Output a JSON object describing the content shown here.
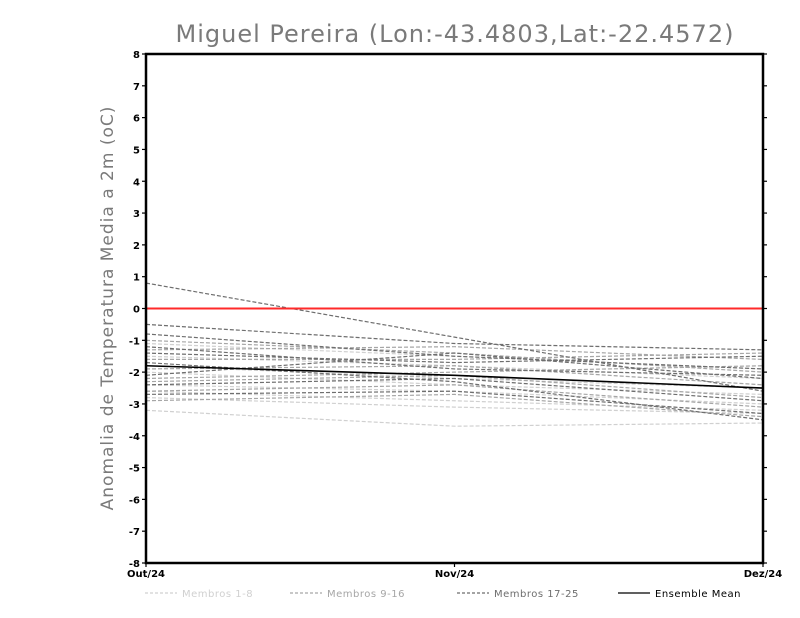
{
  "chart_data": {
    "type": "line",
    "title": "Miguel Pereira (Lon:-43.4803,Lat:-22.4572)",
    "ylabel": "Anomalia de Temperatura Media a 2m (oC)",
    "xlabel": "",
    "categories": [
      "Out/24",
      "Nov/24",
      "Dez/24"
    ],
    "ylim": [
      -8,
      8
    ],
    "yticks": [
      8,
      7,
      6,
      5,
      4,
      3,
      2,
      1,
      0,
      -1,
      -2,
      -3,
      -4,
      -5,
      -6,
      -7,
      -8
    ],
    "reference_line": {
      "y": 0,
      "color": "#ff2a2a"
    },
    "groups": [
      {
        "name": "Membros 1-8",
        "color": "#d0d0d0",
        "dash": "dashed",
        "series": [
          [
            -3.2,
            -3.7,
            -3.6
          ],
          [
            -2.8,
            -3.1,
            -3.3
          ],
          [
            -2.6,
            -2.9,
            -3.2
          ],
          [
            -2.4,
            -2.6,
            -3.0
          ],
          [
            -2.0,
            -2.4,
            -2.7
          ],
          [
            -1.8,
            -2.2,
            -2.5
          ],
          [
            -1.5,
            -1.8,
            -2.2
          ],
          [
            -1.1,
            -1.5,
            -1.9
          ]
        ]
      },
      {
        "name": "Membros 9-16",
        "color": "#a6a6a6",
        "dash": "dashed",
        "series": [
          [
            -2.9,
            -2.7,
            -3.4
          ],
          [
            -2.6,
            -2.4,
            -3.1
          ],
          [
            -2.3,
            -2.1,
            -2.8
          ],
          [
            -1.9,
            -1.8,
            -2.4
          ],
          [
            -1.6,
            -1.6,
            -1.4
          ],
          [
            -1.3,
            -1.2,
            -1.6
          ],
          [
            -1.0,
            -1.4,
            -2.0
          ],
          [
            -2.2,
            -2.0,
            -1.8
          ]
        ]
      },
      {
        "name": "Membros 17-25",
        "color": "#6e6e6e",
        "dash": "dashed",
        "series": [
          [
            0.8,
            -0.9,
            -2.6
          ],
          [
            -0.5,
            -1.1,
            -1.3
          ],
          [
            -0.8,
            -1.5,
            -1.9
          ],
          [
            -1.4,
            -1.7,
            -1.5
          ],
          [
            -1.7,
            -2.3,
            -3.5
          ],
          [
            -2.1,
            -1.4,
            -2.2
          ],
          [
            -2.4,
            -2.2,
            -2.9
          ],
          [
            -2.7,
            -2.6,
            -3.3
          ],
          [
            -1.2,
            -1.9,
            -2.1
          ]
        ]
      }
    ],
    "mean": {
      "name": "Ensemble Mean",
      "color": "#000000",
      "values": [
        -1.8,
        -2.1,
        -2.5
      ]
    },
    "legend_position": "bottom"
  }
}
